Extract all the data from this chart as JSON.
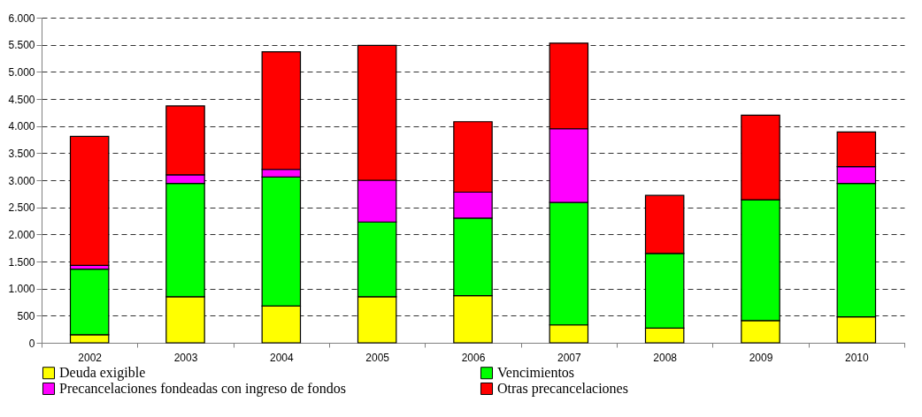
{
  "chart_data": {
    "type": "bar",
    "stacked": true,
    "categories": [
      "2002",
      "2003",
      "2004",
      "2005",
      "2006",
      "2007",
      "2008",
      "2009",
      "2010"
    ],
    "series": [
      {
        "name": "Deuda exigible",
        "color": "#ffff00",
        "values": [
          150,
          850,
          680,
          850,
          870,
          330,
          270,
          410,
          480
        ]
      },
      {
        "name": "Vencimientos",
        "color": "#00ff00",
        "values": [
          1210,
          2090,
          2380,
          1380,
          1430,
          2260,
          1380,
          2230,
          2460
        ]
      },
      {
        "name": "Precancelaciones fondeadas con ingreso de fondos",
        "color": "#ff00ff",
        "values": [
          70,
          160,
          140,
          770,
          480,
          1360,
          null,
          null,
          310
        ]
      },
      {
        "name": "Otras precancelaciones",
        "color": "#ff0000",
        "values": [
          2380,
          1270,
          2170,
          2490,
          1300,
          1580,
          1070,
          1560,
          640
        ]
      }
    ],
    "ylim": [
      0,
      6000
    ],
    "yticks": [
      0,
      {
        "value": 500,
        "label": "500"
      },
      {
        "value": 1000,
        "label": "1.000"
      },
      {
        "value": 1500,
        "label": "1.500"
      },
      {
        "value": 2000,
        "label": "2.000"
      },
      {
        "value": 2500,
        "label": "2.500"
      },
      {
        "value": 3000,
        "label": "3.000"
      },
      {
        "value": 3500,
        "label": "3.500"
      },
      {
        "value": 4000,
        "label": "4.000"
      },
      {
        "value": 4500,
        "label": "4.500"
      },
      {
        "value": 5000,
        "label": "5.000"
      },
      {
        "value": 5500,
        "label": "5.500"
      },
      {
        "value": 6000,
        "label": "6.000"
      }
    ],
    "grid": "y",
    "legend": "bottom"
  }
}
